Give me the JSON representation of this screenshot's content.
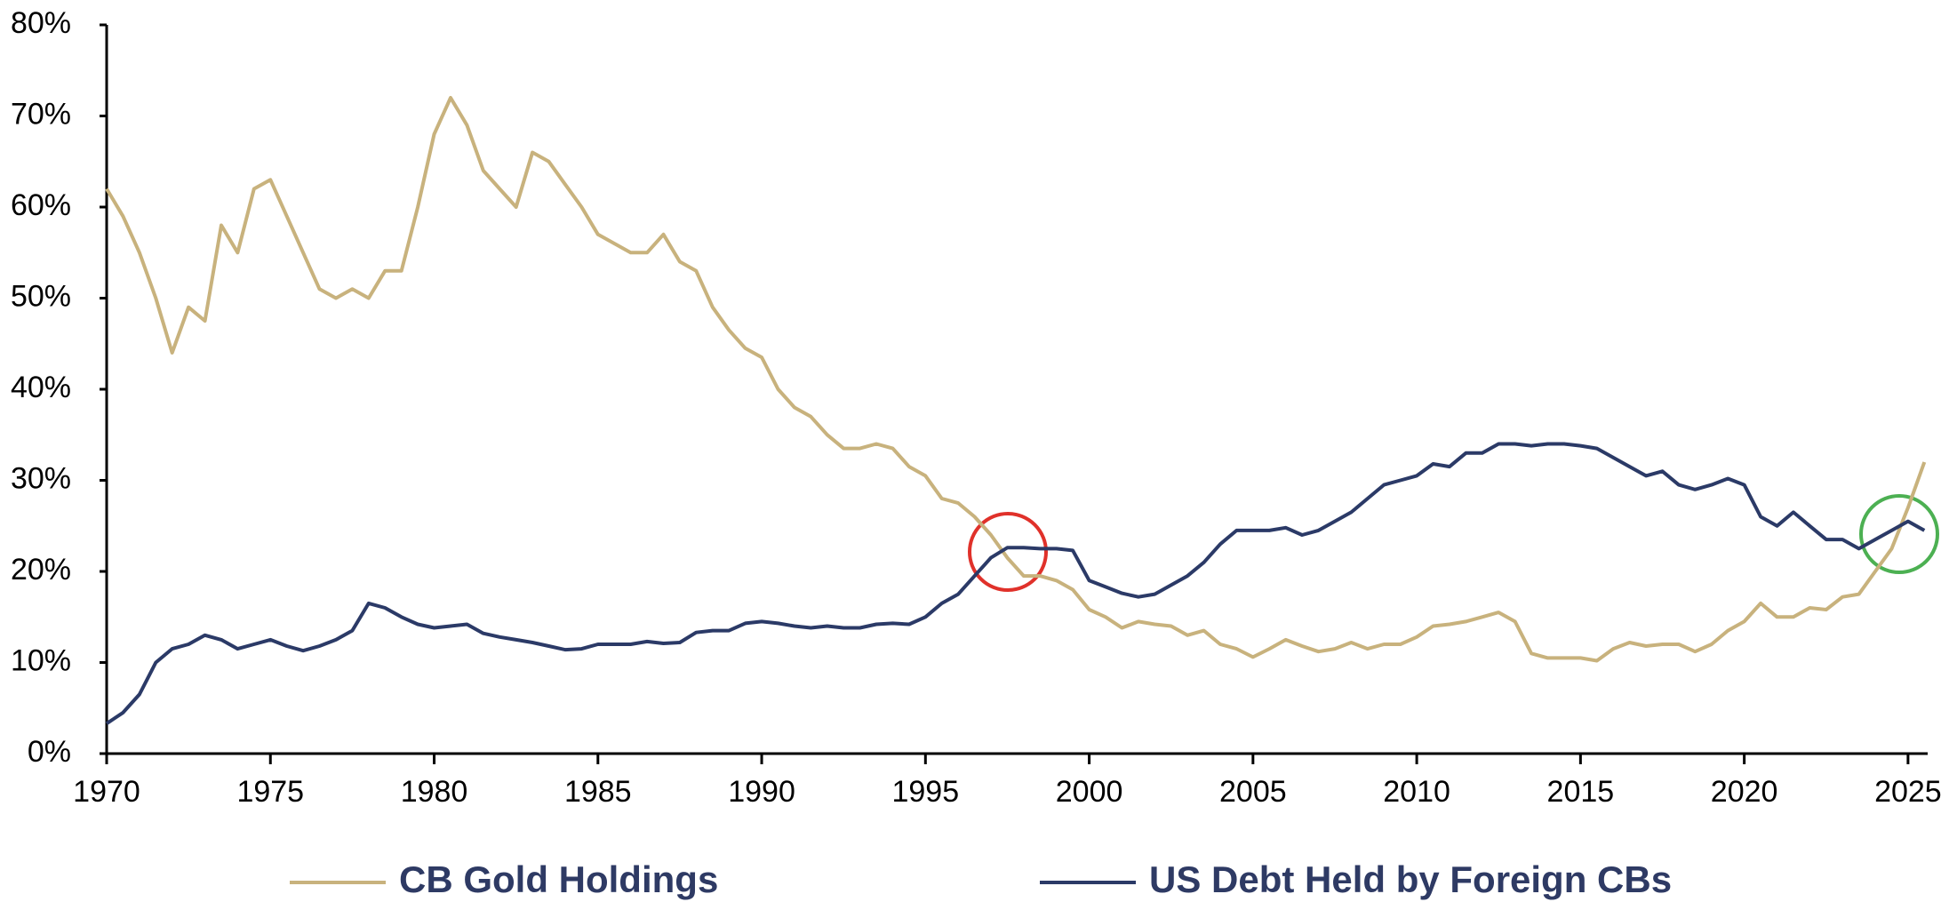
{
  "chart_data": {
    "type": "line",
    "x": [
      1970.0,
      1970.5,
      1971.0,
      1971.5,
      1972.0,
      1972.5,
      1973.0,
      1973.5,
      1974.0,
      1974.5,
      1975.0,
      1975.5,
      1976.0,
      1976.5,
      1977.0,
      1977.5,
      1978.0,
      1978.5,
      1979.0,
      1979.5,
      1980.0,
      1980.5,
      1981.0,
      1981.5,
      1982.0,
      1982.5,
      1983.0,
      1983.5,
      1984.0,
      1984.5,
      1985.0,
      1985.5,
      1986.0,
      1986.5,
      1987.0,
      1987.5,
      1988.0,
      1988.5,
      1989.0,
      1989.5,
      1990.0,
      1990.5,
      1991.0,
      1991.5,
      1992.0,
      1992.5,
      1993.0,
      1993.5,
      1994.0,
      1994.5,
      1995.0,
      1995.5,
      1996.0,
      1996.5,
      1997.0,
      1997.5,
      1998.0,
      1998.5,
      1999.0,
      1999.5,
      2000.0,
      2000.5,
      2001.0,
      2001.5,
      2002.0,
      2002.5,
      2003.0,
      2003.5,
      2004.0,
      2004.5,
      2005.0,
      2005.5,
      2006.0,
      2006.5,
      2007.0,
      2007.5,
      2008.0,
      2008.5,
      2009.0,
      2009.5,
      2010.0,
      2010.5,
      2011.0,
      2011.5,
      2012.0,
      2012.5,
      2013.0,
      2013.5,
      2014.0,
      2014.5,
      2015.0,
      2015.5,
      2016.0,
      2016.5,
      2017.0,
      2017.5,
      2018.0,
      2018.5,
      2019.0,
      2019.5,
      2020.0,
      2020.5,
      2021.0,
      2021.5,
      2022.0,
      2022.5,
      2023.0,
      2023.5,
      2024.0,
      2024.5,
      2025.0,
      2025.5
    ],
    "series": [
      {
        "name": "CB Gold Holdings",
        "color": "#c8b27d",
        "values": [
          62,
          59,
          55,
          50,
          44,
          49,
          47.5,
          58,
          55,
          62,
          63,
          59,
          55,
          51,
          50,
          51,
          50,
          53,
          53,
          60,
          68,
          72,
          69,
          64,
          62,
          60,
          66,
          65,
          62.5,
          60,
          57,
          56,
          55,
          55,
          57,
          54,
          53,
          49,
          46.5,
          44.5,
          43.5,
          40,
          38,
          37,
          35,
          33.5,
          33.5,
          34,
          33.5,
          31.5,
          30.5,
          28,
          27.5,
          26,
          24,
          21.5,
          19.5,
          19.5,
          19,
          18,
          15.8,
          15,
          13.8,
          14.5,
          14.2,
          14,
          13,
          13.5,
          12,
          11.5,
          10.6,
          11.5,
          12.5,
          11.8,
          11.2,
          11.5,
          12.2,
          11.5,
          12,
          12,
          12.8,
          14,
          14.2,
          14.5,
          15,
          15.5,
          14.5,
          11,
          10.5,
          10.5,
          10.5,
          10.2,
          11.5,
          12.2,
          11.8,
          12,
          12,
          11.2,
          12,
          13.5,
          14.5,
          16.5,
          15,
          15,
          16,
          15.8,
          17.2,
          17.5,
          20,
          22.5,
          27,
          32
        ]
      },
      {
        "name": "US Debt Held by Foreign CBs",
        "color": "#2b3a67",
        "values": [
          3.3,
          4.5,
          6.5,
          10,
          11.5,
          12,
          13,
          12.5,
          11.5,
          12,
          12.5,
          11.8,
          11.3,
          11.8,
          12.5,
          13.5,
          16.5,
          16,
          15,
          14.2,
          13.8,
          14,
          14.2,
          13.2,
          12.8,
          12.5,
          12.2,
          11.8,
          11.4,
          11.5,
          12,
          12,
          12,
          12.3,
          12.1,
          12.2,
          13.3,
          13.5,
          13.5,
          14.3,
          14.5,
          14.3,
          14,
          13.8,
          14,
          13.8,
          13.8,
          14.2,
          14.3,
          14.2,
          15,
          16.5,
          17.5,
          19.5,
          21.5,
          22.6,
          22.6,
          22.5,
          22.5,
          22.3,
          19,
          18.3,
          17.6,
          17.2,
          17.5,
          18.5,
          19.5,
          21,
          23,
          24.5,
          24.5,
          24.5,
          24.8,
          24,
          24.5,
          25.5,
          26.5,
          28,
          29.5,
          30,
          30.5,
          31.8,
          31.5,
          33,
          33,
          34,
          34,
          33.8,
          34,
          34,
          33.8,
          33.5,
          32.5,
          31.5,
          30.5,
          31,
          29.5,
          29,
          29.5,
          30.2,
          29.5,
          26,
          25,
          26.5,
          25,
          23.5,
          23.5,
          22.5,
          23.5,
          24.5,
          25.5,
          24.5
        ]
      }
    ],
    "xlim": [
      1970,
      2025.6
    ],
    "xticks": [
      1970,
      1975,
      1980,
      1985,
      1990,
      1995,
      2000,
      2005,
      2010,
      2015,
      2020,
      2025
    ],
    "ylim": [
      0,
      80
    ],
    "yticks": [
      {
        "value": 0,
        "label": "0%"
      },
      {
        "value": 10,
        "label": "10%"
      },
      {
        "value": 20,
        "label": "20%"
      },
      {
        "value": 30,
        "label": "30%"
      },
      {
        "value": 40,
        "label": "40%"
      },
      {
        "value": 50,
        "label": "50%"
      },
      {
        "value": 60,
        "label": "60%"
      },
      {
        "value": 70,
        "label": "70%"
      },
      {
        "value": 80,
        "label": "80%"
      }
    ],
    "grid": false,
    "legend": "bottom"
  }
}
